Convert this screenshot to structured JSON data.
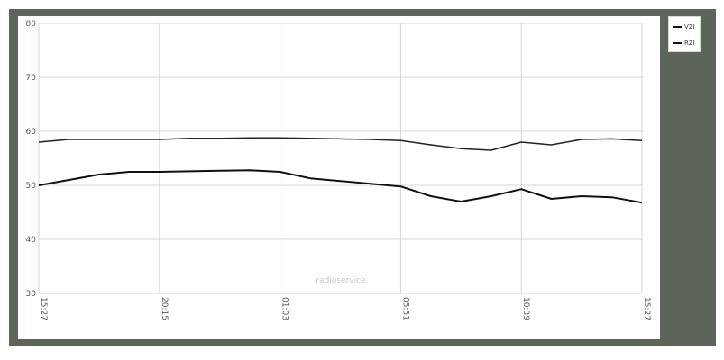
{
  "chart_data": {
    "type": "line",
    "title": "",
    "xlabel": "",
    "ylabel": "",
    "ylim": [
      30,
      80
    ],
    "y_ticks": [
      "80",
      "70",
      "60",
      "50",
      "40",
      "30"
    ],
    "x_ticks": [
      "15:27",
      "20:15",
      "01:03",
      "05:51",
      "10:39",
      "15:27"
    ],
    "grid": true,
    "legend_position": "right",
    "watermark": "radioservice",
    "x": [
      "15:27",
      "16:39",
      "17:51",
      "19:03",
      "20:15",
      "21:27",
      "22:39",
      "23:51",
      "01:03",
      "02:15",
      "03:27",
      "04:39",
      "05:51",
      "07:03",
      "08:15",
      "09:27",
      "10:39",
      "11:51",
      "13:03",
      "14:15",
      "15:27"
    ],
    "series": [
      {
        "name": "VZI",
        "color": "#222222",
        "values": [
          58.0,
          58.5,
          58.5,
          58.5,
          58.5,
          58.7,
          58.7,
          58.8,
          58.8,
          58.7,
          58.6,
          58.5,
          58.3,
          57.5,
          56.8,
          56.5,
          58.0,
          57.5,
          58.5,
          58.6,
          58.3
        ]
      },
      {
        "name": "RZI",
        "color": "#111111",
        "values": [
          50.0,
          51.0,
          52.0,
          52.5,
          52.5,
          52.6,
          52.7,
          52.8,
          52.5,
          51.3,
          50.8,
          50.3,
          49.8,
          48.0,
          47.0,
          48.0,
          49.3,
          47.5,
          48.0,
          47.8,
          46.8
        ]
      }
    ]
  }
}
